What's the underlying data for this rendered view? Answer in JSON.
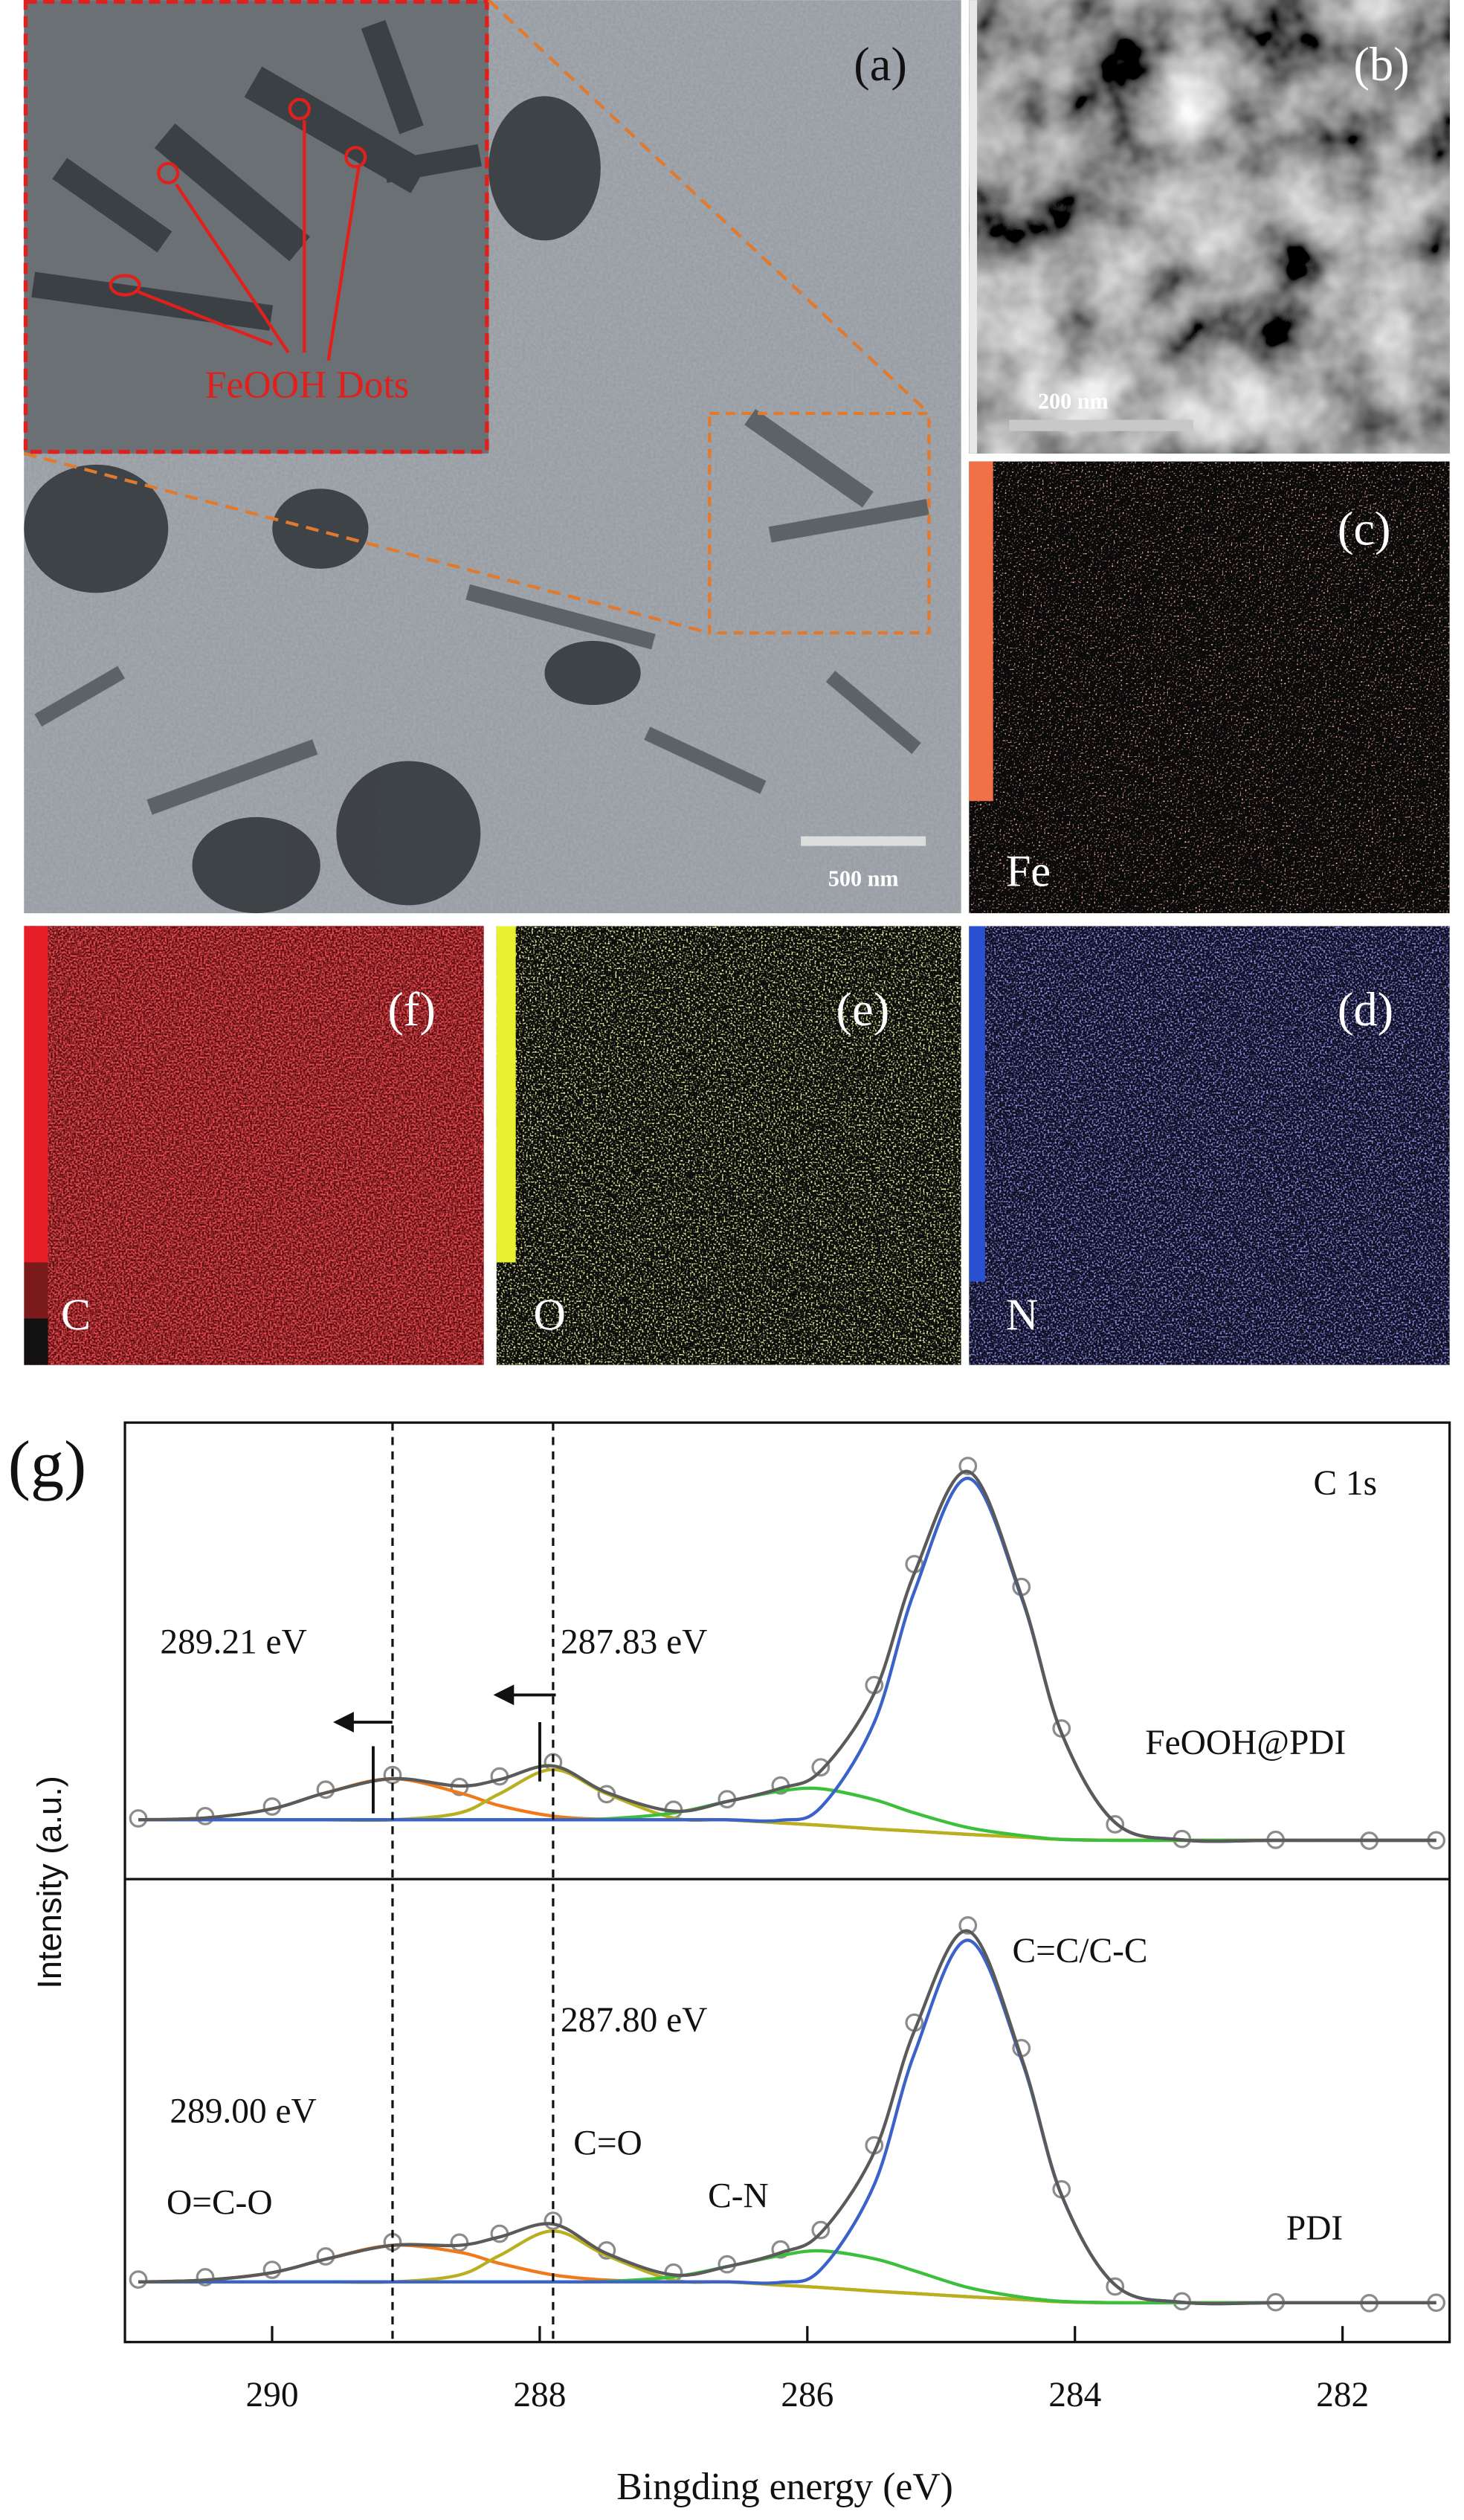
{
  "micrographs": {
    "a": {
      "label": "(a)",
      "inset_label": "FeOOH Dots",
      "scale_bar": "500 nm"
    },
    "b": {
      "label": "(b)",
      "scale_bar": "200 nm"
    },
    "c": {
      "label": "(c)",
      "element": "Fe"
    },
    "d": {
      "label": "(d)",
      "element": "N"
    },
    "e": {
      "label": "(e)",
      "element": "O"
    },
    "f": {
      "label": "(f)",
      "element": "C"
    }
  },
  "chart_data": {
    "type": "line",
    "panel_label": "(g)",
    "x_label": "Bingding energy (eV)",
    "y_label": "Intensity (a.u.)",
    "x": [
      291.0,
      290.5,
      290.0,
      289.6,
      289.1,
      288.6,
      288.3,
      287.9,
      287.5,
      287.0,
      286.6,
      286.2,
      285.9,
      285.5,
      285.2,
      284.8,
      284.4,
      284.1,
      283.7,
      283.2,
      282.5,
      281.8,
      281.3
    ],
    "xlim": [
      291.1,
      281.2
    ],
    "xticks": [
      290,
      288,
      286,
      284,
      282
    ],
    "ylim": [
      0,
      100
    ],
    "reference_lines": [
      289.1,
      287.9
    ],
    "panels": [
      {
        "annotations": [
          "C 1s",
          "289.21 eV",
          "287.83 eV",
          "FeOOH@PDI"
        ],
        "series": [
          {
            "color": "#8c8c8c",
            "marker": "circle",
            "values": [
              13.3,
              13.8,
              15.9,
              19.6,
              22.8,
              20.2,
              22.5,
              25.6,
              18.6,
              15.2,
              17.5,
              20.5,
              24.5,
              42.5,
              69,
              90.5,
              64,
              33,
              12,
              8.8,
              8.6,
              8.4,
              8.5
            ]
          },
          {
            "color": "#f07a1a",
            "values": [
              13,
              13.4,
              15.4,
              18.9,
              22,
              18.9,
              16.1,
              13.8,
              13.1,
              13,
              13,
              12.3,
              11.8,
              11,
              10.5,
              9.8,
              9.2,
              8.7,
              8.5,
              8.5,
              8.5,
              8.5,
              8.5
            ]
          },
          {
            "color": "#b8b020",
            "values": [
              13,
              13,
              13,
              13,
              13,
              14.5,
              18.7,
              24,
              18.7,
              13.4,
              13,
              12.3,
              11.8,
              11,
              10.5,
              9.8,
              9.2,
              8.7,
              8.5,
              8.5,
              8.5,
              8.5,
              8.5
            ]
          },
          {
            "color": "#3cbf3c",
            "values": [
              13,
              13,
              13,
              13,
              13,
              13,
              13,
              13,
              13.2,
              14.5,
              17,
              19.3,
              19.8,
              17.4,
              14.5,
              11.3,
              9.55,
              8.7,
              8.5,
              8.5,
              8.5,
              8.5,
              8.5
            ]
          },
          {
            "color": "#3a62c8",
            "values": [
              13,
              13,
              13,
              13,
              13,
              13,
              13,
              13,
              13,
              13,
              13,
              12.9,
              15.7,
              34.3,
              63,
              87.8,
              61.7,
              32,
              12.4,
              8.6,
              8.5,
              8.5,
              8.5
            ]
          },
          {
            "color": "#5a5a5a",
            "values": [
              13,
              13.4,
              15.4,
              18.9,
              22,
              20.4,
              21.8,
              24.8,
              19,
              14.9,
              17,
              19.9,
              23.7,
              40.7,
              67,
              89.3,
              62.1,
              32,
              12.4,
              8.6,
              8.5,
              8.5,
              8.5
            ]
          }
        ]
      },
      {
        "annotations": [
          "C=C/C-C",
          "287.80 eV",
          "289.00 eV",
          "C=O",
          "O=C-O",
          "C-N",
          "PDI"
        ],
        "series": [
          {
            "color": "#8c8c8c",
            "marker": "circle",
            "values": [
              13.5,
              14,
              15.6,
              18.5,
              21.6,
              21.5,
              23.4,
              26.2,
              19.8,
              15,
              16.8,
              20,
              24.2,
              42.5,
              69,
              90,
              63.5,
              33,
              12,
              8.8,
              8.6,
              8.4,
              8.5
            ]
          },
          {
            "color": "#f07a1a",
            "values": [
              13,
              13.4,
              15,
              17.9,
              20.9,
              19.4,
              17,
              14.5,
              13.4,
              13,
              13,
              12.3,
              11.8,
              11,
              10.5,
              9.8,
              9.2,
              8.7,
              8.5,
              8.5,
              8.5,
              8.5,
              8.5
            ]
          },
          {
            "color": "#b8b020",
            "values": [
              13,
              13,
              13,
              13,
              13,
              14.5,
              18.7,
              24,
              18.7,
              13.4,
              13,
              12.3,
              11.8,
              11,
              10.5,
              9.8,
              9.2,
              8.7,
              8.5,
              8.5,
              8.5,
              8.5,
              8.5
            ]
          },
          {
            "color": "#3cbf3c",
            "values": [
              13,
              13,
              13,
              13,
              13,
              13,
              13,
              13,
              13.1,
              14.1,
              16.3,
              18.7,
              19.7,
              18,
              15.4,
              11.8,
              9.7,
              8.8,
              8.5,
              8.5,
              8.5,
              8.5,
              8.5
            ]
          },
          {
            "color": "#3a62c8",
            "values": [
              13,
              13,
              13,
              13,
              13,
              13,
              13,
              13,
              13,
              13,
              13,
              12.9,
              15.65,
              34,
              62.3,
              86.8,
              61,
              31.7,
              12.35,
              8.6,
              8.5,
              8.5,
              8.5
            ]
          },
          {
            "color": "#5a5a5a",
            "values": [
              13,
              13.4,
              15,
              17.9,
              20.9,
              20.9,
              22.7,
              25.5,
              19.15,
              14.5,
              16.3,
              19.3,
              23.55,
              41,
              67.2,
              88.8,
              61.5,
              31.8,
              12.35,
              8.6,
              8.5,
              8.5,
              8.5
            ]
          }
        ]
      }
    ]
  }
}
